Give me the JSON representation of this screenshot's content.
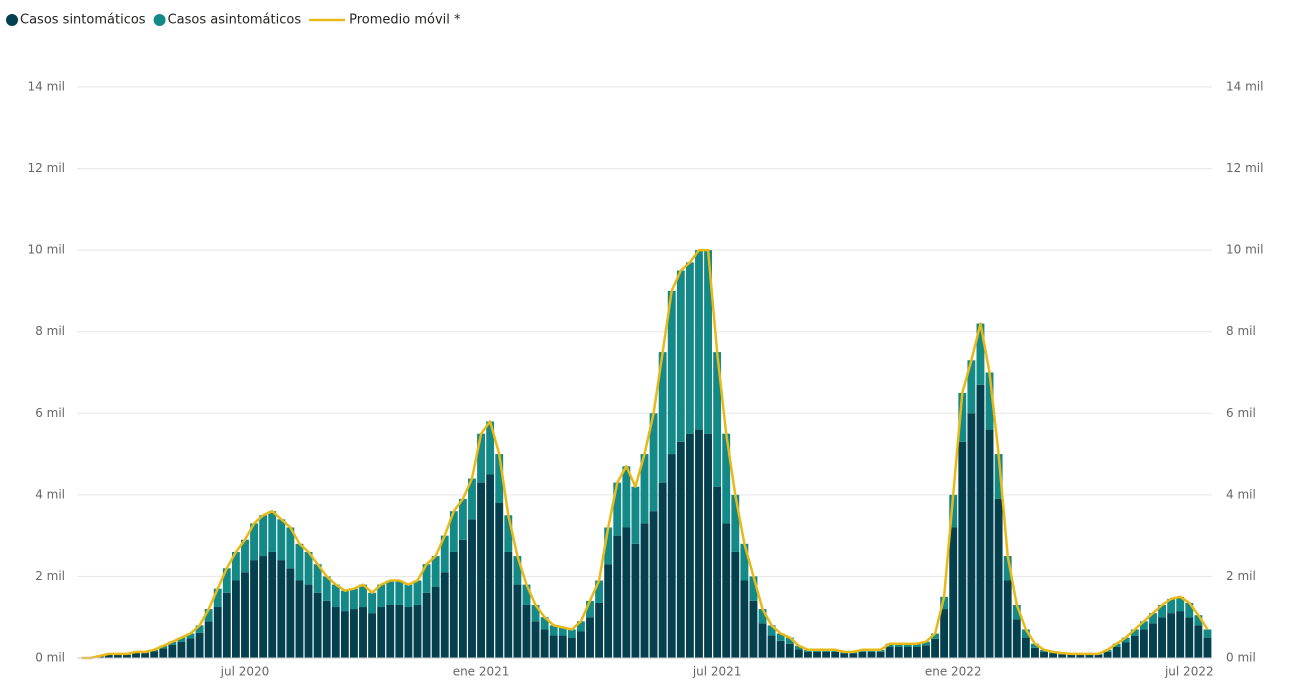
{
  "chart_data": {
    "type": "bar",
    "stacked": true,
    "grid": true,
    "categories": [
      null,
      null,
      null,
      null,
      null,
      null,
      null,
      null,
      null,
      null,
      null,
      null,
      null,
      null,
      null,
      null,
      null,
      null,
      "jul 2020",
      null,
      null,
      null,
      null,
      null,
      null,
      null,
      null,
      null,
      null,
      null,
      null,
      null,
      null,
      null,
      null,
      null,
      null,
      null,
      null,
      null,
      null,
      null,
      null,
      null,
      "ene 2021",
      null,
      null,
      null,
      null,
      null,
      null,
      null,
      null,
      null,
      null,
      null,
      null,
      null,
      null,
      null,
      null,
      null,
      null,
      null,
      null,
      null,
      null,
      null,
      null,
      null,
      "jul 2021",
      null,
      null,
      null,
      null,
      null,
      null,
      null,
      null,
      null,
      null,
      null,
      null,
      null,
      null,
      null,
      null,
      null,
      null,
      null,
      null,
      null,
      null,
      null,
      null,
      null,
      "ene 2022",
      null,
      null,
      null,
      null,
      null,
      null,
      null,
      null,
      null,
      null,
      null,
      null,
      null,
      null,
      null,
      null,
      null,
      null,
      null,
      null,
      null,
      null,
      null,
      null,
      null,
      "jul 2022",
      null,
      null
    ],
    "series": [
      {
        "name": "Casos sintomáticos",
        "color": "#05404f",
        "values": [
          0,
          0,
          40,
          80,
          80,
          80,
          120,
          120,
          160,
          240,
          320,
          400,
          480,
          620,
          900,
          1250,
          1600,
          1900,
          2100,
          2400,
          2500,
          2600,
          2400,
          2200,
          1900,
          1800,
          1600,
          1400,
          1250,
          1150,
          1200,
          1250,
          1100,
          1250,
          1300,
          1300,
          1250,
          1300,
          1600,
          1750,
          2100,
          2600,
          2900,
          3400,
          4300,
          4500,
          3800,
          2600,
          1800,
          1300,
          900,
          700,
          550,
          550,
          500,
          650,
          1000,
          1350,
          2300,
          3000,
          3200,
          2800,
          3300,
          3600,
          4300,
          5000,
          5300,
          5500,
          5600,
          5500,
          4200,
          3300,
          2600,
          1900,
          1400,
          850,
          550,
          420,
          350,
          210,
          150,
          150,
          150,
          150,
          110,
          110,
          150,
          150,
          150,
          270,
          270,
          270,
          270,
          310,
          470,
          1200,
          3200,
          5300,
          6000,
          6700,
          5600,
          3900,
          1900,
          950,
          500,
          250,
          150,
          110,
          90,
          75,
          75,
          75,
          75,
          150,
          270,
          380,
          540,
          700,
          850,
          1000,
          1100,
          1150,
          1000,
          800,
          500
        ]
      },
      {
        "name": "Casos asintomáticos",
        "color": "#138a87",
        "values": [
          0,
          0,
          10,
          20,
          20,
          20,
          30,
          30,
          40,
          60,
          80,
          100,
          120,
          180,
          300,
          450,
          600,
          700,
          800,
          900,
          1000,
          1000,
          1000,
          1000,
          900,
          800,
          700,
          600,
          550,
          500,
          500,
          550,
          500,
          550,
          600,
          600,
          550,
          600,
          700,
          750,
          900,
          1000,
          1000,
          1000,
          1200,
          1300,
          1200,
          900,
          700,
          500,
          400,
          300,
          250,
          200,
          200,
          250,
          400,
          550,
          900,
          1300,
          1500,
          1400,
          1700,
          2400,
          3200,
          4000,
          4200,
          4200,
          4400,
          4500,
          3300,
          2200,
          1400,
          900,
          600,
          350,
          250,
          180,
          150,
          90,
          50,
          50,
          50,
          50,
          40,
          40,
          50,
          50,
          50,
          80,
          80,
          80,
          80,
          90,
          130,
          300,
          800,
          1200,
          1300,
          1500,
          1400,
          1100,
          600,
          350,
          200,
          100,
          50,
          40,
          30,
          25,
          25,
          25,
          25,
          50,
          80,
          120,
          160,
          200,
          250,
          300,
          350,
          350,
          350,
          250,
          200
        ]
      },
      {
        "name": "Promedio móvil *",
        "type": "line",
        "color": "#e8b917",
        "values": [
          0,
          0,
          50,
          100,
          100,
          100,
          150,
          150,
          200,
          300,
          400,
          500,
          600,
          800,
          1200,
          1700,
          2200,
          2600,
          2900,
          3300,
          3500,
          3600,
          3400,
          3200,
          2800,
          2600,
          2300,
          2000,
          1800,
          1650,
          1700,
          1800,
          1600,
          1800,
          1900,
          1900,
          1800,
          1900,
          2300,
          2500,
          3000,
          3600,
          3900,
          4400,
          5500,
          5800,
          5000,
          3500,
          2500,
          1800,
          1300,
          1000,
          800,
          750,
          700,
          900,
          1400,
          1900,
          3200,
          4300,
          4700,
          4200,
          5000,
          6000,
          7500,
          9000,
          9500,
          9700,
          10000,
          10000,
          7500,
          5500,
          4000,
          2800,
          2000,
          1200,
          800,
          600,
          500,
          300,
          200,
          200,
          200,
          200,
          150,
          150,
          200,
          200,
          200,
          350,
          350,
          350,
          350,
          400,
          600,
          1500,
          4000,
          6500,
          7300,
          8200,
          7000,
          5000,
          2500,
          1300,
          700,
          350,
          200,
          150,
          120,
          100,
          100,
          100,
          100,
          200,
          350,
          500,
          700,
          900,
          1100,
          1300,
          1450,
          1500,
          1350,
          1050,
          700
        ]
      }
    ],
    "ylim": [
      0,
      14000
    ],
    "yticks": [
      {
        "value": 0,
        "label": "0 mil"
      },
      {
        "value": 2000,
        "label": "2 mil"
      },
      {
        "value": 4000,
        "label": "4 mil"
      },
      {
        "value": 6000,
        "label": "6 mil"
      },
      {
        "value": 8000,
        "label": "8 mil"
      },
      {
        "value": 10000,
        "label": "10 mil"
      },
      {
        "value": 12000,
        "label": "12 mil"
      },
      {
        "value": 14000,
        "label": "14 mil"
      }
    ],
    "y2lim": [
      0,
      14000
    ],
    "y2ticks": [
      {
        "value": 0,
        "label": "0 mil"
      },
      {
        "value": 2000,
        "label": "2 mil"
      },
      {
        "value": 4000,
        "label": "4 mil"
      },
      {
        "value": 6000,
        "label": "6 mil"
      },
      {
        "value": 8000,
        "label": "8 mil"
      },
      {
        "value": 10000,
        "label": "10 mil"
      },
      {
        "value": 12000,
        "label": "12 mil"
      },
      {
        "value": 14000,
        "label": "14 mil"
      }
    ]
  }
}
